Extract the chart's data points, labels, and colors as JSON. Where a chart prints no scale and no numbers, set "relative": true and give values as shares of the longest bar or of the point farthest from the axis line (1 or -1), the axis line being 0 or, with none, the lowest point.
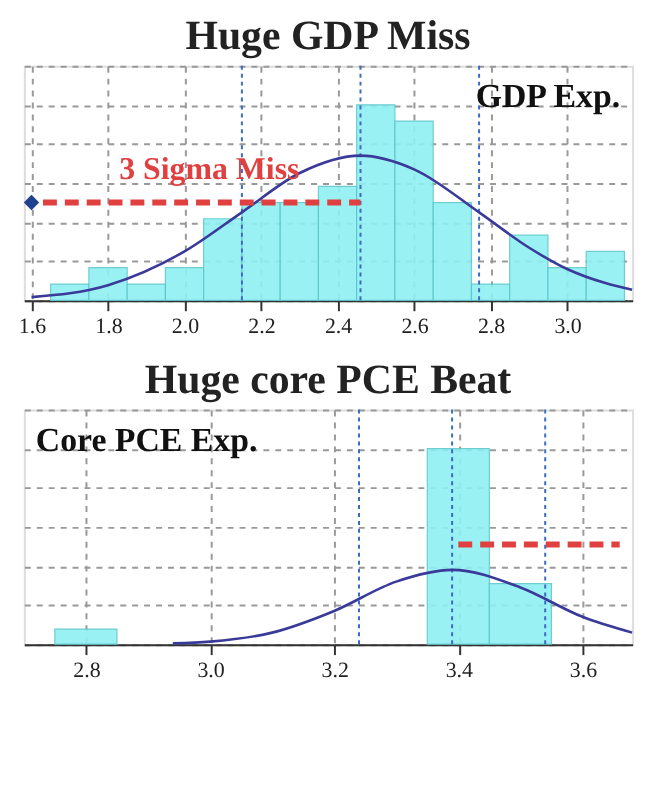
{
  "chart_data": [
    {
      "type": "histogram",
      "title": "Huge GDP Miss",
      "relative": true,
      "color": "#8ff0f2",
      "bins": [
        1.65,
        1.75,
        1.85,
        1.95,
        2.05,
        2.15,
        2.25,
        2.35,
        2.45,
        2.55,
        2.65,
        2.75,
        2.85,
        2.95,
        3.05,
        3.15
      ],
      "values": [
        0.083,
        0.167,
        0.083,
        0.167,
        0.417,
        0.5,
        0.5,
        0.583,
        1,
        0.917,
        0.5,
        0.083,
        0.333,
        0.167,
        0.25
      ],
      "series": [
        {
          "type": "line",
          "color": "#3a3a9a",
          "x": [
            1.6,
            1.8,
            2.0,
            2.15,
            2.3,
            2.46,
            2.6,
            2.77,
            2.9,
            3.0,
            3.1,
            3.17
          ],
          "values": [
            0.016,
            0.077,
            0.25,
            0.45,
            0.65,
            0.74,
            0.67,
            0.45,
            0.27,
            0.16,
            0.088,
            0.054
          ]
        },
        {
          "type": "line",
          "color": "#e04040",
          "line_style": "dashed",
          "x": [
            2.46,
            1.63
          ],
          "values": [
            0.5,
            0.5
          ]
        },
        {
          "type": "scatter",
          "color": "#1f3f8f",
          "marker": "diamond",
          "x": [
            1.6
          ],
          "values": [
            0.5
          ]
        }
      ],
      "ref_lines": [
        {
          "axis": "x",
          "value": 2.15,
          "color": "#3b6cc0",
          "line_style": "dotted"
        },
        {
          "axis": "x",
          "value": 2.46,
          "color": "#3b6cc0",
          "line_style": "dotted"
        },
        {
          "axis": "x",
          "value": 2.77,
          "color": "#3b6cc0",
          "line_style": "dotted"
        }
      ],
      "annotations": [
        "GDP Exp.",
        "3 Sigma Miss"
      ],
      "xlim": [
        1.58,
        3.17
      ],
      "xticks": [
        {
          "value": 1.6,
          "label": "1.6"
        },
        {
          "value": 1.8,
          "label": "1.8"
        },
        {
          "value": 2.0,
          "label": "2.0"
        },
        {
          "value": 2.2,
          "label": "2.2"
        },
        {
          "value": 2.4,
          "label": "2.4"
        },
        {
          "value": 2.6,
          "label": "2.6"
        },
        {
          "value": 2.8,
          "label": "2.8"
        },
        {
          "value": 3.0,
          "label": "3.0"
        }
      ],
      "grid": true,
      "tick_labels": "x"
    },
    {
      "type": "histogram",
      "title": "Huge core PCE Beat",
      "relative": true,
      "color": "#8ff0f2",
      "bins": [
        2.75,
        2.85,
        2.95,
        3.05,
        3.15,
        3.25,
        3.35,
        3.45,
        3.55
      ],
      "values": [
        0.077,
        0,
        0,
        0,
        0,
        0,
        1,
        0.31
      ],
      "series": [
        {
          "type": "line",
          "color": "#3a3a9a",
          "x": [
            2.94,
            3.0,
            3.1,
            3.2,
            3.3,
            3.39,
            3.5,
            3.6,
            3.68
          ],
          "values": [
            0.004,
            0.013,
            0.059,
            0.17,
            0.32,
            0.38,
            0.29,
            0.14,
            0.059
          ]
        },
        {
          "type": "line",
          "color": "#e04040",
          "line_style": "dashed",
          "x": [
            3.4,
            3.66
          ],
          "values": [
            0.51,
            0.51
          ]
        }
      ],
      "ref_lines": [
        {
          "axis": "x",
          "value": 3.24,
          "color": "#3b6cc0",
          "line_style": "dotted"
        },
        {
          "axis": "x",
          "value": 3.39,
          "color": "#3b6cc0",
          "line_style": "dotted"
        },
        {
          "axis": "x",
          "value": 3.54,
          "color": "#3b6cc0",
          "line_style": "dotted"
        }
      ],
      "annotations": [
        "Core PCE Exp."
      ],
      "xlim": [
        2.7,
        3.68
      ],
      "xticks": [
        {
          "value": 2.8,
          "label": "2.8"
        },
        {
          "value": 3.0,
          "label": "3.0"
        },
        {
          "value": 3.2,
          "label": "3.2"
        },
        {
          "value": 3.4,
          "label": "3.4"
        },
        {
          "value": 3.6,
          "label": "3.6"
        }
      ],
      "grid": true,
      "tick_labels": "x"
    }
  ]
}
